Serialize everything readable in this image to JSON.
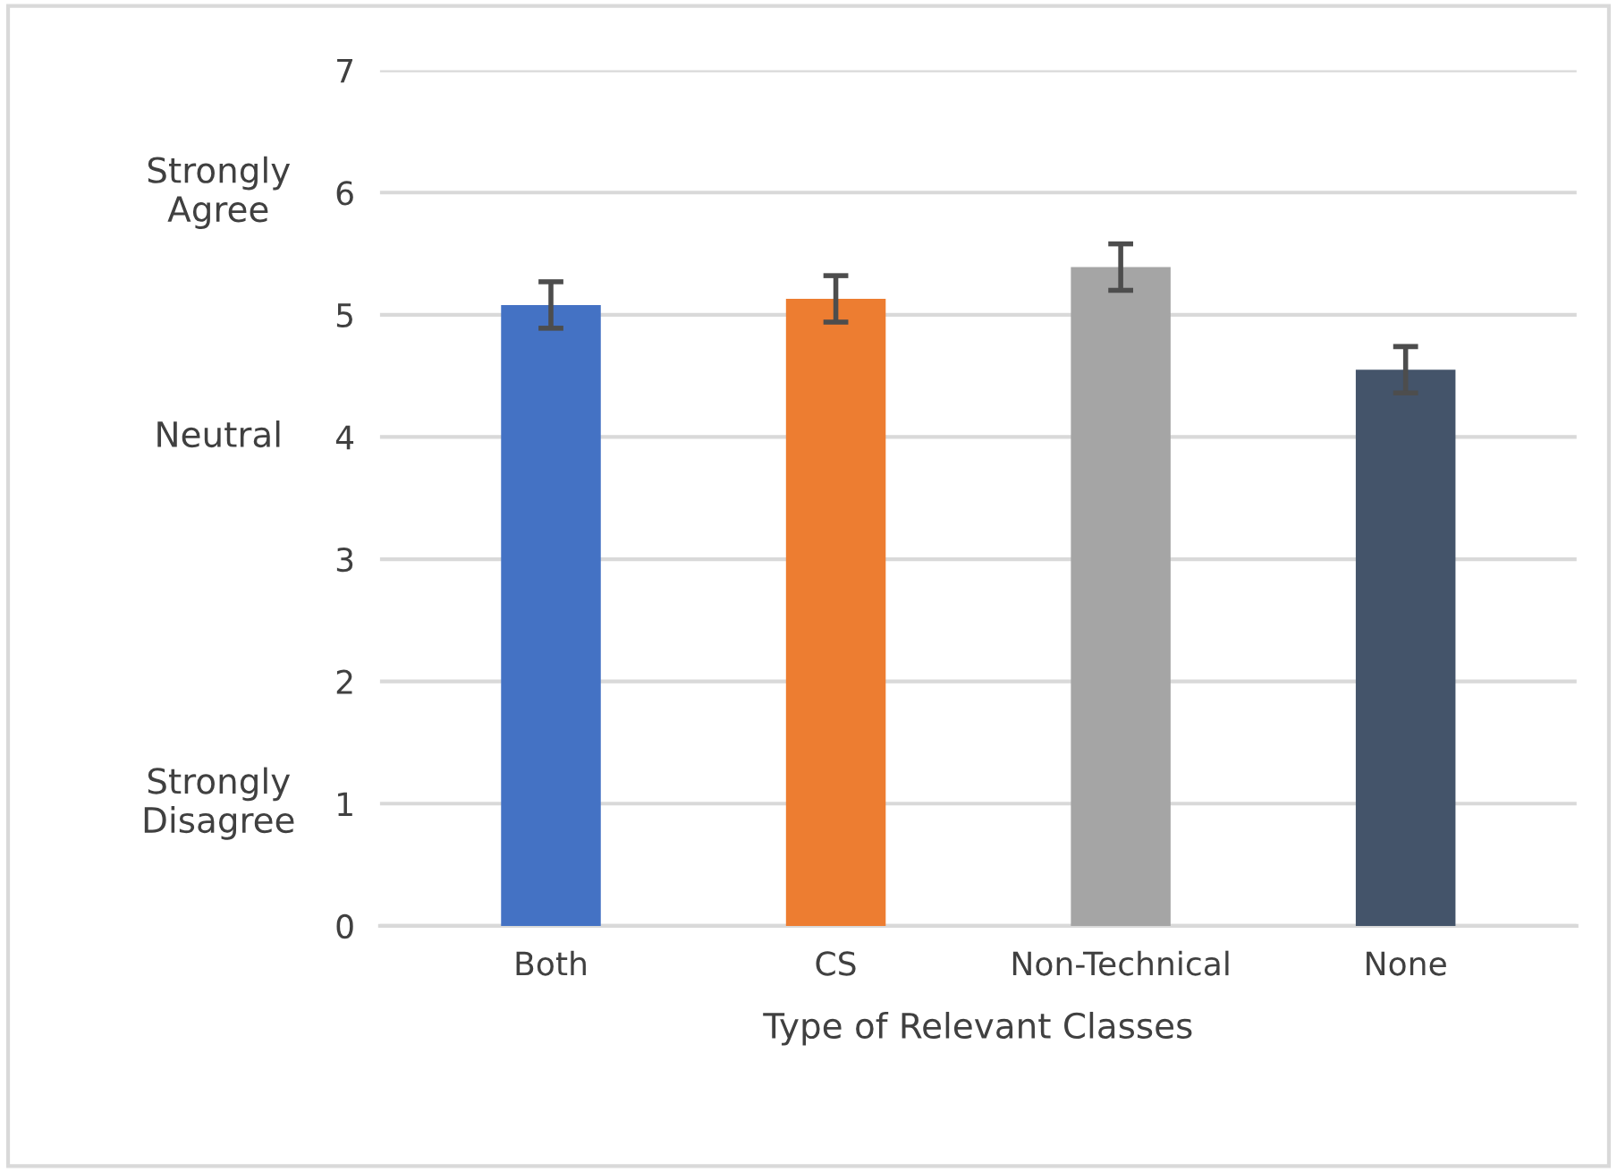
{
  "chart_data": {
    "type": "bar",
    "xlabel": "Type of Relevant Classes",
    "categories": [
      "Both",
      "CS",
      "Non-Technical",
      "None"
    ],
    "values": [
      5.08,
      5.13,
      5.39,
      4.55
    ],
    "colors": [
      "#4472c4",
      "#ed7d31",
      "#a5a5a5",
      "#44546a"
    ],
    "errors": [
      0.19,
      0.19,
      0.19,
      0.19
    ],
    "ylim": [
      0,
      7
    ],
    "yticks": [
      0,
      1,
      2,
      3,
      4,
      5,
      6,
      7
    ],
    "grid": "y",
    "annotations": [
      "Strongly\nAgree",
      "Neutral",
      "Strongly\nDisagree"
    ]
  }
}
